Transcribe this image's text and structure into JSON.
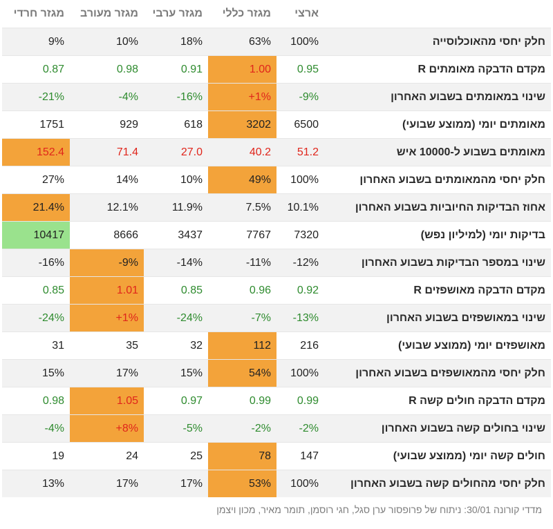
{
  "headers": [
    "מגזר חרדי",
    "מגזר מעורב",
    "מגזר ערבי",
    "מגזר כללי",
    "ארצי",
    ""
  ],
  "rows": [
    {
      "label": "חלק יחסי מהאוכלוסייה",
      "cells": [
        {
          "v": "9%",
          "c": "black"
        },
        {
          "v": "10%",
          "c": "black"
        },
        {
          "v": "18%",
          "c": "black"
        },
        {
          "v": "63%",
          "c": "black"
        },
        {
          "v": "100%",
          "c": "black"
        }
      ]
    },
    {
      "label": "מקדם הדבקה מאומתים R",
      "cells": [
        {
          "v": "0.87",
          "c": "green"
        },
        {
          "v": "0.98",
          "c": "green"
        },
        {
          "v": "0.91",
          "c": "green"
        },
        {
          "v": "1.00",
          "c": "red",
          "hl": "orange"
        },
        {
          "v": "0.95",
          "c": "green"
        }
      ]
    },
    {
      "label": "שינוי במאומתים בשבוע האחרון",
      "cells": [
        {
          "v": "-21%",
          "c": "green"
        },
        {
          "v": "-4%",
          "c": "green"
        },
        {
          "v": "-16%",
          "c": "green"
        },
        {
          "v": "+1%",
          "c": "red",
          "hl": "orange"
        },
        {
          "v": "-9%",
          "c": "green"
        }
      ]
    },
    {
      "label": "מאומתים יומי (ממוצע שבועי)",
      "cells": [
        {
          "v": "1751",
          "c": "black"
        },
        {
          "v": "929",
          "c": "black"
        },
        {
          "v": "618",
          "c": "black"
        },
        {
          "v": "3202",
          "c": "black",
          "hl": "orange"
        },
        {
          "v": "6500",
          "c": "black"
        }
      ]
    },
    {
      "label": "מאומתים בשבוע ל-10000 איש",
      "cells": [
        {
          "v": "152.4",
          "c": "red",
          "hl": "orange"
        },
        {
          "v": "71.4",
          "c": "red"
        },
        {
          "v": "27.0",
          "c": "red"
        },
        {
          "v": "40.2",
          "c": "red"
        },
        {
          "v": "51.2",
          "c": "red"
        }
      ]
    },
    {
      "label": "חלק יחסי מהמאומתים בשבוע האחרון",
      "cells": [
        {
          "v": "27%",
          "c": "black"
        },
        {
          "v": "14%",
          "c": "black"
        },
        {
          "v": "10%",
          "c": "black"
        },
        {
          "v": "49%",
          "c": "black",
          "hl": "orange"
        },
        {
          "v": "100%",
          "c": "black"
        }
      ]
    },
    {
      "label": "אחוז הבדיקות החיוביות בשבוע האחרון",
      "cells": [
        {
          "v": "21.4%",
          "c": "black",
          "hl": "orange"
        },
        {
          "v": "12.1%",
          "c": "black"
        },
        {
          "v": "11.9%",
          "c": "black"
        },
        {
          "v": "7.5%",
          "c": "black"
        },
        {
          "v": "10.1%",
          "c": "black"
        }
      ]
    },
    {
      "label": "בדיקות יומי (למיליון נפש)",
      "cells": [
        {
          "v": "10417",
          "c": "black",
          "hl": "green"
        },
        {
          "v": "8666",
          "c": "black"
        },
        {
          "v": "3437",
          "c": "black"
        },
        {
          "v": "7767",
          "c": "black"
        },
        {
          "v": "7320",
          "c": "black"
        }
      ]
    },
    {
      "label": "שינוי במספר הבדיקות בשבוע האחרון",
      "cells": [
        {
          "v": "-16%",
          "c": "black"
        },
        {
          "v": "-9%",
          "c": "black",
          "hl": "orange"
        },
        {
          "v": "-14%",
          "c": "black"
        },
        {
          "v": "-11%",
          "c": "black"
        },
        {
          "v": "-12%",
          "c": "black"
        }
      ]
    },
    {
      "label": "מקדם הדבקה מאושפזים R",
      "cells": [
        {
          "v": "0.85",
          "c": "green"
        },
        {
          "v": "1.01",
          "c": "red",
          "hl": "orange"
        },
        {
          "v": "0.85",
          "c": "green"
        },
        {
          "v": "0.96",
          "c": "green"
        },
        {
          "v": "0.92",
          "c": "green"
        }
      ]
    },
    {
      "label": "שינוי במאושפזים בשבוע האחרון",
      "cells": [
        {
          "v": "-24%",
          "c": "green"
        },
        {
          "v": "+1%",
          "c": "red",
          "hl": "orange"
        },
        {
          "v": "-24%",
          "c": "green"
        },
        {
          "v": "-7%",
          "c": "green"
        },
        {
          "v": "-13%",
          "c": "green"
        }
      ]
    },
    {
      "label": "מאושפזים יומי (ממוצע שבועי)",
      "cells": [
        {
          "v": "31",
          "c": "black"
        },
        {
          "v": "35",
          "c": "black"
        },
        {
          "v": "32",
          "c": "black"
        },
        {
          "v": "112",
          "c": "black",
          "hl": "orange"
        },
        {
          "v": "216",
          "c": "black"
        }
      ]
    },
    {
      "label": "חלק יחסי מהמאושפזים בשבוע האחרון",
      "cells": [
        {
          "v": "15%",
          "c": "black"
        },
        {
          "v": "17%",
          "c": "black"
        },
        {
          "v": "15%",
          "c": "black"
        },
        {
          "v": "54%",
          "c": "black",
          "hl": "orange"
        },
        {
          "v": "100%",
          "c": "black"
        }
      ]
    },
    {
      "label": "מקדם הדבקה חולים קשה R",
      "cells": [
        {
          "v": "0.98",
          "c": "green"
        },
        {
          "v": "1.05",
          "c": "red",
          "hl": "orange"
        },
        {
          "v": "0.97",
          "c": "green"
        },
        {
          "v": "0.99",
          "c": "green"
        },
        {
          "v": "0.99",
          "c": "green"
        }
      ]
    },
    {
      "label": "שינוי בחולים קשה בשבוע האחרון",
      "cells": [
        {
          "v": "-4%",
          "c": "green"
        },
        {
          "v": "+8%",
          "c": "red",
          "hl": "orange"
        },
        {
          "v": "-5%",
          "c": "green"
        },
        {
          "v": "-2%",
          "c": "green"
        },
        {
          "v": "-2%",
          "c": "green"
        }
      ]
    },
    {
      "label": "חולים קשה יומי (ממוצע שבועי)",
      "cells": [
        {
          "v": "19",
          "c": "black"
        },
        {
          "v": "24",
          "c": "black"
        },
        {
          "v": "25",
          "c": "black"
        },
        {
          "v": "78",
          "c": "black",
          "hl": "orange"
        },
        {
          "v": "147",
          "c": "black"
        }
      ]
    },
    {
      "label": "חלק יחסי מהחולים קשה בשבוע האחרון",
      "cells": [
        {
          "v": "13%",
          "c": "black"
        },
        {
          "v": "17%",
          "c": "black"
        },
        {
          "v": "17%",
          "c": "black"
        },
        {
          "v": "53%",
          "c": "black",
          "hl": "orange"
        },
        {
          "v": "100%",
          "c": "black"
        }
      ]
    }
  ],
  "caption": "מדדי קורונה 30/01: ניתוח של פרופסור ערן סגל, חגי רוסמן, תומר מאיר, מכון ויצמן",
  "colors": {
    "highlight_orange": "#f3a33a",
    "highlight_green": "#9ae28d",
    "positive_green": "#2e8b2e",
    "negative_red": "#e0251b"
  }
}
